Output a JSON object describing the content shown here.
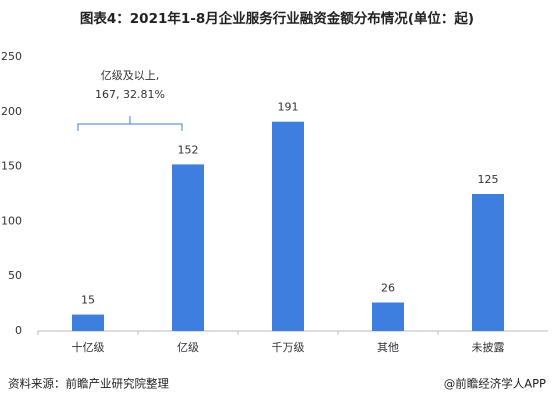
{
  "chart_data": {
    "type": "bar",
    "title": "图表4：2021年1-8月企业服务行业融资金额分布情况(单位：起)",
    "categories": [
      "十亿级",
      "亿级",
      "千万级",
      "其他",
      "未披露"
    ],
    "values": [
      15,
      152,
      191,
      26,
      125
    ],
    "color": "#3e7fdd",
    "ylim": [
      0,
      250
    ],
    "yticks": [
      0,
      50,
      100,
      150,
      200,
      250
    ],
    "grid": false,
    "annotation": [
      "亿级及以上,",
      "167, 32.81%"
    ],
    "source": "资料来源：前瞻产业研究院整理",
    "credit": "@前瞻经济学人APP"
  }
}
